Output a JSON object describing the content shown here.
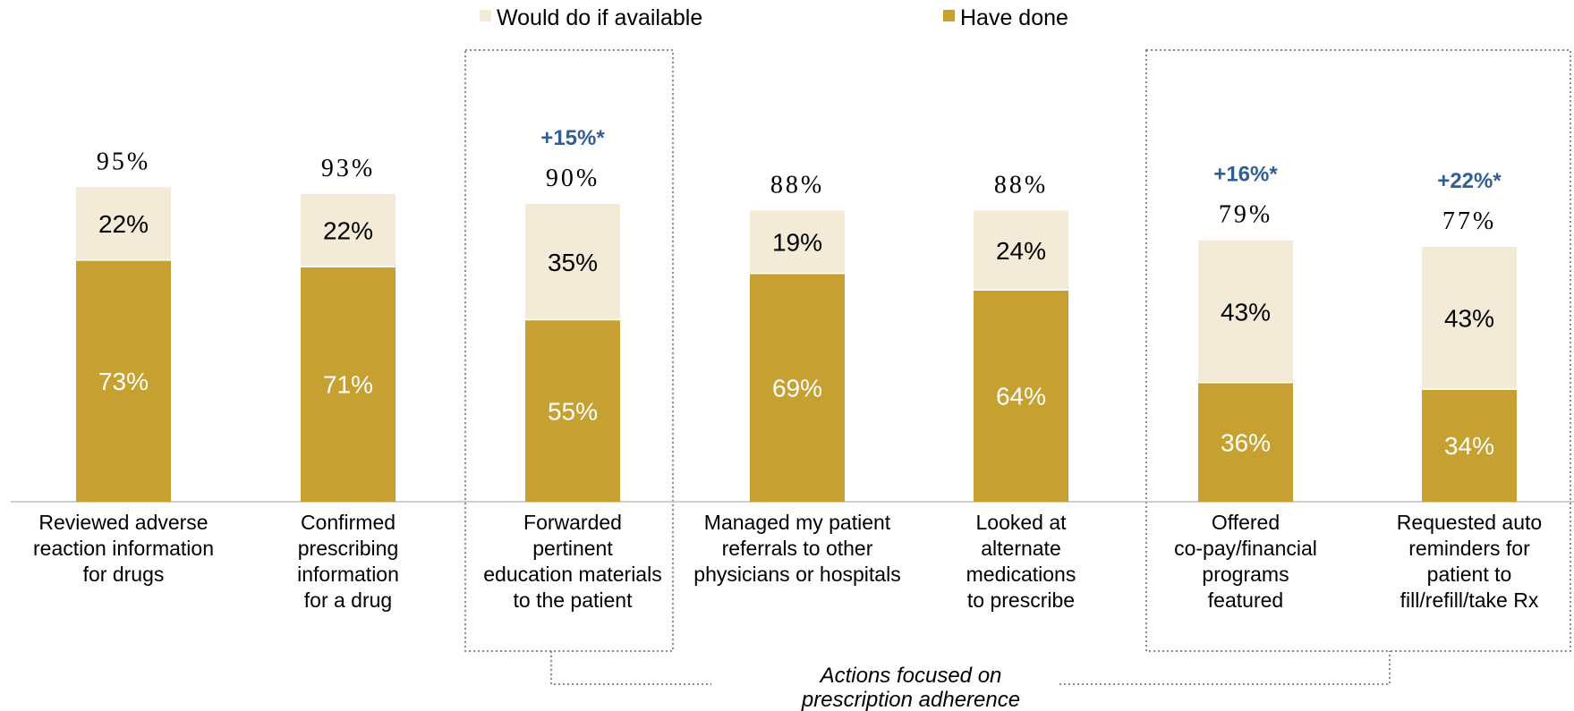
{
  "chart_data": {
    "type": "bar",
    "stacked": true,
    "categories": [
      [
        "Reviewed adverse",
        "reaction information",
        "for drugs"
      ],
      [
        "Confirmed",
        "prescribing",
        "information",
        "for a drug"
      ],
      [
        "Forwarded",
        "pertinent",
        "education materials",
        "to the patient"
      ],
      [
        "Managed my patient",
        "referrals to other",
        "physicians or hospitals"
      ],
      [
        "Looked at",
        "alternate",
        "medications",
        "to prescribe"
      ],
      [
        "Offered",
        "co-pay/financial",
        "programs",
        "featured"
      ],
      [
        "Requested auto",
        "reminders for",
        "patient to",
        "fill/refill/take Rx"
      ]
    ],
    "series": [
      {
        "name": "Have done",
        "values": [
          73,
          71,
          55,
          69,
          64,
          36,
          34
        ],
        "labels": [
          "73%",
          "71%",
          "55%",
          "69%",
          "64%",
          "36%",
          "34%"
        ],
        "color": "#c6a030"
      },
      {
        "name": "Would do if available",
        "values": [
          22,
          22,
          35,
          19,
          24,
          43,
          43
        ],
        "labels": [
          "22%",
          "22%",
          "35%",
          "19%",
          "24%",
          "43%",
          "43%"
        ],
        "color": "#f3ead7"
      }
    ],
    "totals": [
      "95%",
      "93%",
      "90%",
      "88%",
      "88%",
      "79%",
      "77%"
    ],
    "total_values": [
      95,
      93,
      90,
      88,
      88,
      79,
      77
    ],
    "deltas": [
      "",
      "",
      "+15%*",
      "",
      "",
      "+16%*",
      "+22%*"
    ],
    "highlighted_indices": [
      2,
      5,
      6
    ],
    "annotation": [
      "Actions focused on",
      "prescription adherence"
    ],
    "legend_position": "top",
    "ylim": [
      0,
      100
    ],
    "grid": false
  }
}
